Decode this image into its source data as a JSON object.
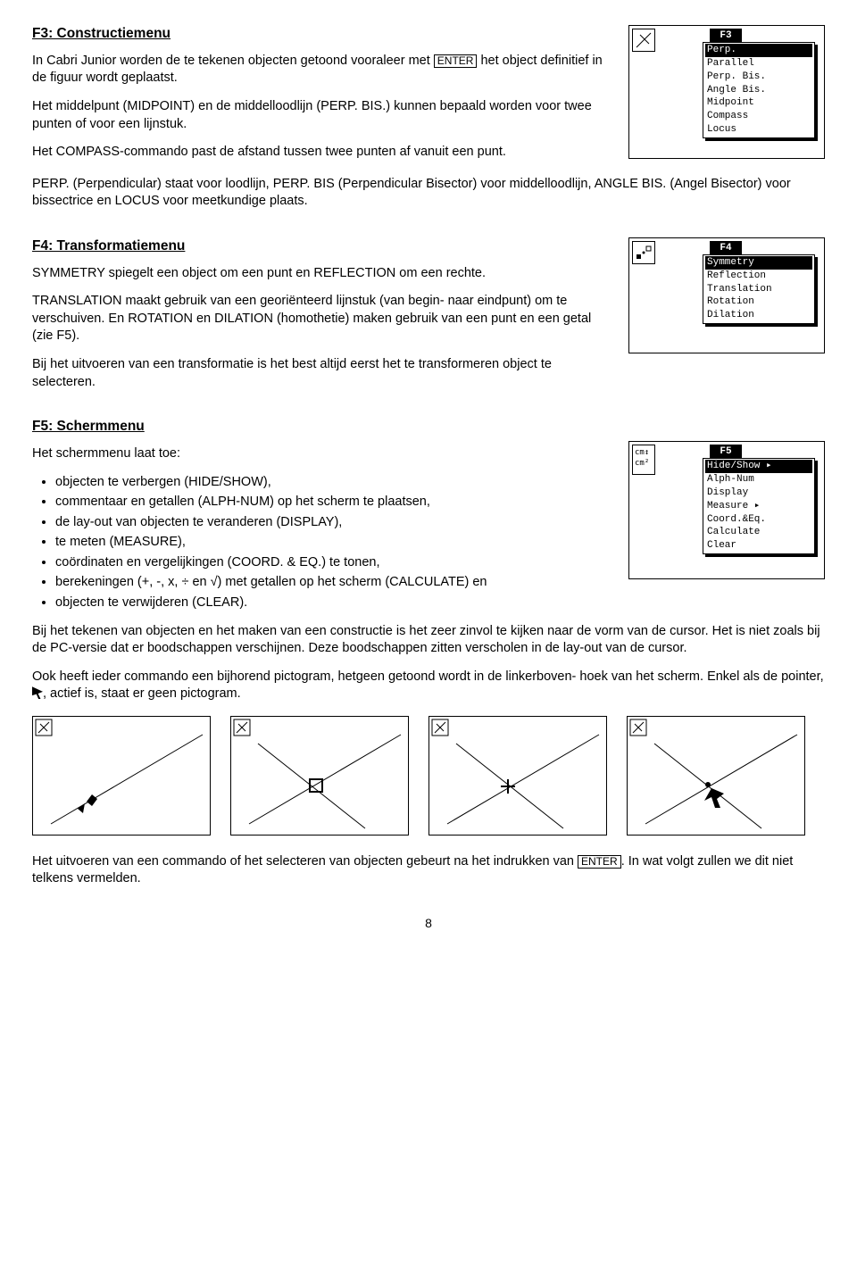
{
  "f3": {
    "heading": "F3: Constructiemenu",
    "p1a": "In Cabri Junior worden de te tekenen objecten getoond vooraleer met ",
    "p1key": "ENTER",
    "p1b": " het object definitief in de figuur wordt geplaatst.",
    "p2": "Het middelpunt (MIDPOINT) en de middelloodlijn (PERP. BIS.) kunnen bepaald worden voor twee punten of voor een lijnstuk.",
    "p3": "Het COMPASS-commando past de afstand tussen twee punten af vanuit een punt.",
    "p4": "PERP. (Perpendicular) staat voor loodlijn, PERP. BIS (Perpendicular Bisector) voor middelloodlijn, ANGLE BIS. (Angel Bisector) voor bissectrice en LOCUS voor meetkundige plaats.",
    "menu_title": "F3",
    "menu_items": [
      "Perp.",
      "Parallel",
      "Perp. Bis.",
      "Angle Bis.",
      "Midpoint",
      "Compass",
      "Locus"
    ],
    "menu_highlight": 0
  },
  "f4": {
    "heading": "F4: Transformatiemenu",
    "p1": "SYMMETRY spiegelt een object om een punt en REFLECTION om een rechte.",
    "p2": "TRANSLATION maakt gebruik van een georiënteerd lijnstuk (van begin- naar eindpunt) om te verschuiven. En ROTATION en DILATION (homothetie) maken gebruik van een punt en een getal (zie F5).",
    "p3": "Bij het uitvoeren van een transformatie is het best altijd eerst het te transformeren object te selecteren.",
    "menu_title": "F4",
    "menu_items": [
      "Symmetry",
      "Reflection",
      "Translation",
      "Rotation",
      "Dilation"
    ],
    "menu_highlight": 0
  },
  "f5": {
    "heading": "F5: Schermmenu",
    "intro": "Het schermmenu laat toe:",
    "bullets": [
      "objecten te verbergen (HIDE/SHOW),",
      "commentaar en getallen (ALPH-NUM) op het scherm te plaatsen,",
      "de lay-out van objecten te veranderen (DISPLAY),",
      "te meten (MEASURE),",
      "coördinaten en vergelijkingen (COORD. & EQ.) te tonen,",
      "berekeningen (+, -, x, ÷ en √) met getallen op het scherm (CALCULATE) en",
      "objecten te verwijderen (CLEAR)."
    ],
    "p_after1": "Bij het tekenen van objecten en het maken van een constructie is het zeer zinvol te kijken naar de vorm van de cursor. Het is niet zoals bij de PC-versie dat er boodschappen verschijnen. Deze boodschappen zitten verscholen in de lay-out van de cursor.",
    "p_after2a": "Ook heeft ieder commando een bijhorend pictogram, hetgeen getoond wordt in de linkerboven- hoek van het scherm. Enkel als de pointer, ",
    "p_after2b": ", actief is, staat er geen pictogram.",
    "menu_title": "F5",
    "menu_items": [
      "Hide/Show ▸",
      "Alph-Num",
      "Display",
      "Measure   ▸",
      "Coord.&Eq.",
      "Calculate",
      "Clear"
    ],
    "menu_highlight": 0,
    "final_a": "Het uitvoeren van een commando of het selecteren van objecten gebeurt na het indrukken van ",
    "final_key": "ENTER",
    "final_b": ". In wat volgt zullen we dit niet telkens vermelden."
  },
  "pagenum": "8"
}
